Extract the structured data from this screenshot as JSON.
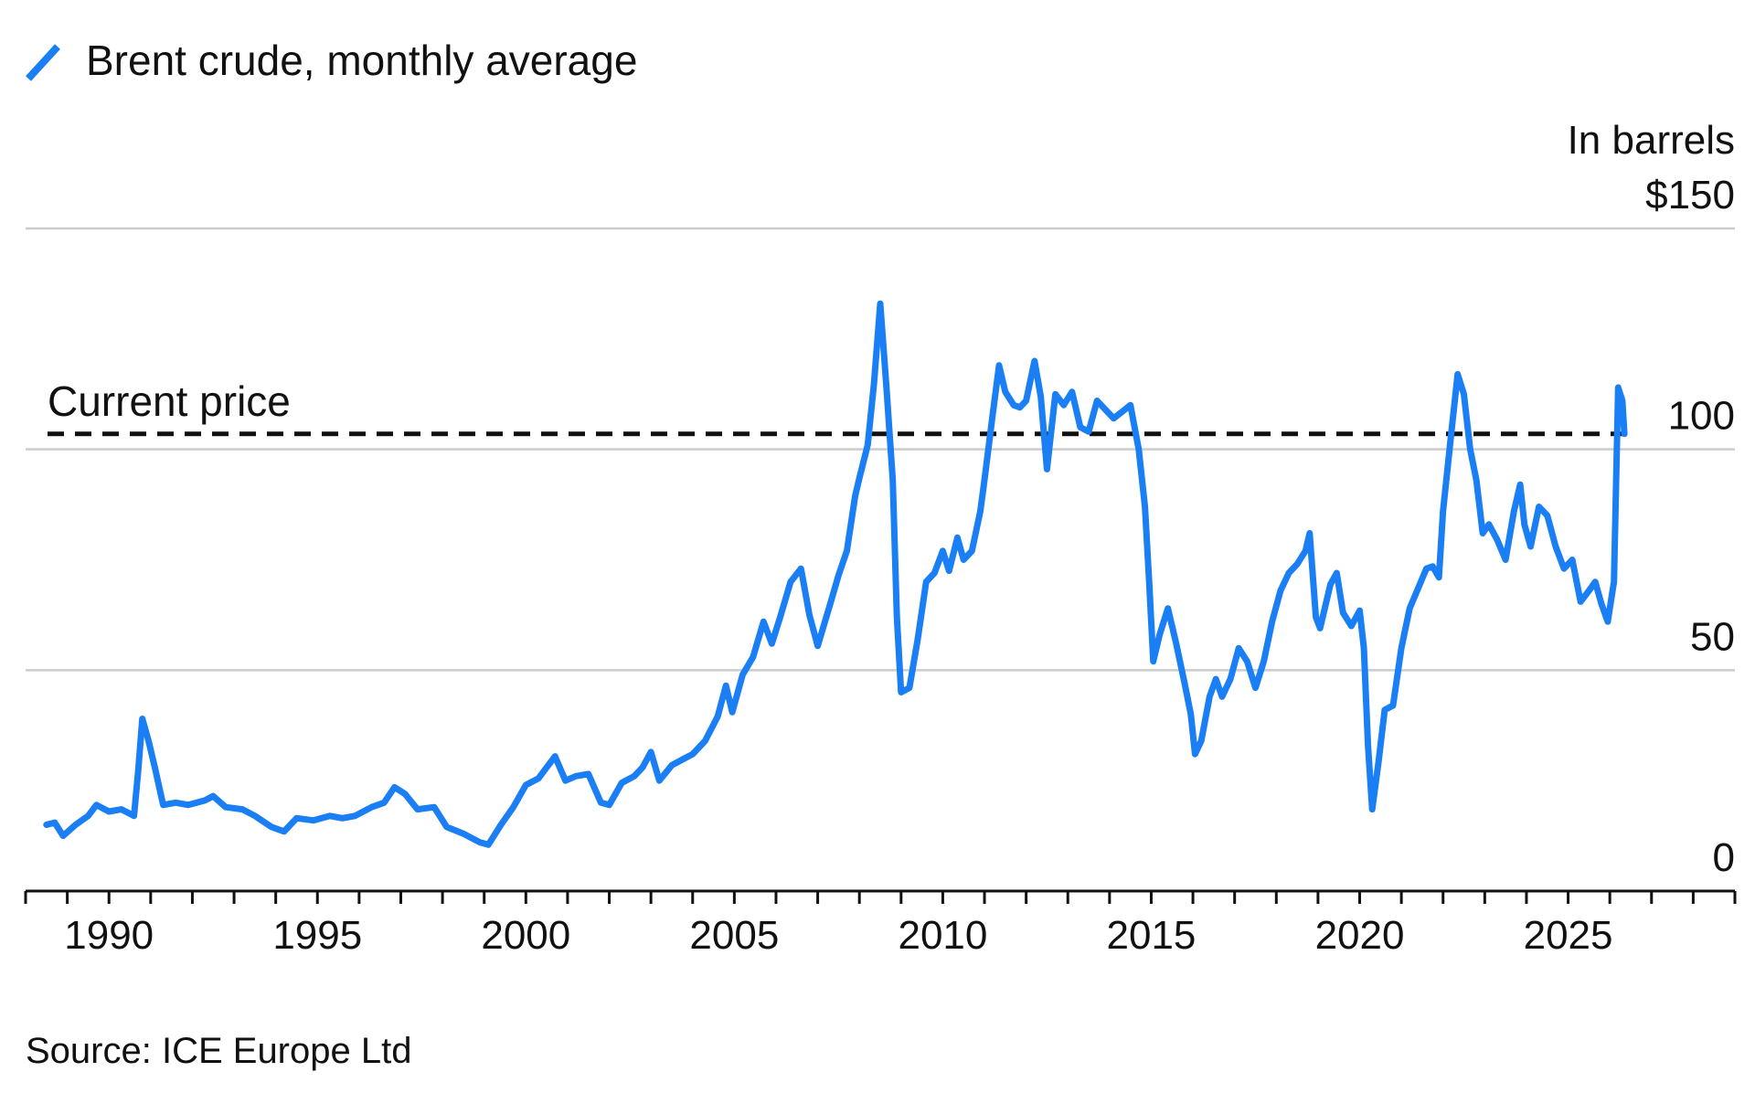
{
  "legend": {
    "label": "Brent crude, monthly average",
    "color": "#1a7ef5",
    "icon": "slash-line-icon"
  },
  "chart_data": {
    "type": "line",
    "unit_label": "In barrels",
    "source": "Source: ICE Europe Ltd",
    "ylim": [
      0,
      150
    ],
    "y_ticks": [
      {
        "value": 150,
        "label": "$150"
      },
      {
        "value": 100,
        "label": "100"
      },
      {
        "value": 50,
        "label": "50"
      },
      {
        "value": 0,
        "label": "0"
      }
    ],
    "xlim": [
      1988,
      2029
    ],
    "x_tick_labels": [
      "1990",
      "1995",
      "2000",
      "2005",
      "2010",
      "2015",
      "2020",
      "2025"
    ],
    "grid": true,
    "legend_position": "top-left",
    "reference_line": {
      "label": "Current price",
      "value": 103.5,
      "style": "dashed",
      "color": "#111111"
    },
    "series": [
      {
        "name": "Brent crude, monthly average",
        "color": "#1a7ef5",
        "points": [
          [
            1988.5,
            15
          ],
          [
            1988.7,
            15.5
          ],
          [
            1988.9,
            12.5
          ],
          [
            1989.2,
            15
          ],
          [
            1989.5,
            17
          ],
          [
            1989.7,
            19.5
          ],
          [
            1990.0,
            18
          ],
          [
            1990.3,
            18.5
          ],
          [
            1990.6,
            17
          ],
          [
            1990.7,
            27
          ],
          [
            1990.8,
            39
          ],
          [
            1990.95,
            34
          ],
          [
            1991.1,
            28
          ],
          [
            1991.3,
            19.5
          ],
          [
            1991.6,
            20
          ],
          [
            1991.9,
            19.5
          ],
          [
            1992.3,
            20.5
          ],
          [
            1992.5,
            21.5
          ],
          [
            1992.8,
            19
          ],
          [
            1993.2,
            18.5
          ],
          [
            1993.5,
            17
          ],
          [
            1993.9,
            14.5
          ],
          [
            1994.2,
            13.5
          ],
          [
            1994.5,
            16.5
          ],
          [
            1994.9,
            16
          ],
          [
            1995.3,
            17
          ],
          [
            1995.6,
            16.5
          ],
          [
            1995.9,
            17
          ],
          [
            1996.3,
            19
          ],
          [
            1996.6,
            20
          ],
          [
            1996.85,
            23.5
          ],
          [
            1997.1,
            22
          ],
          [
            1997.4,
            18.5
          ],
          [
            1997.8,
            19
          ],
          [
            1998.1,
            14.5
          ],
          [
            1998.5,
            13
          ],
          [
            1998.9,
            11
          ],
          [
            1999.1,
            10.5
          ],
          [
            1999.4,
            15
          ],
          [
            1999.7,
            19
          ],
          [
            2000.0,
            24
          ],
          [
            2000.3,
            25.5
          ],
          [
            2000.5,
            28
          ],
          [
            2000.7,
            30.5
          ],
          [
            2000.95,
            25
          ],
          [
            2001.2,
            26
          ],
          [
            2001.5,
            26.5
          ],
          [
            2001.8,
            20
          ],
          [
            2002.0,
            19.5
          ],
          [
            2002.3,
            24.5
          ],
          [
            2002.6,
            26
          ],
          [
            2002.8,
            28
          ],
          [
            2003.0,
            31.5
          ],
          [
            2003.2,
            25
          ],
          [
            2003.5,
            28.5
          ],
          [
            2003.8,
            30
          ],
          [
            2004.0,
            31
          ],
          [
            2004.3,
            34
          ],
          [
            2004.6,
            39.5
          ],
          [
            2004.8,
            46.5
          ],
          [
            2004.95,
            40.5
          ],
          [
            2005.2,
            49
          ],
          [
            2005.45,
            53
          ],
          [
            2005.7,
            61
          ],
          [
            2005.9,
            56
          ],
          [
            2006.1,
            62
          ],
          [
            2006.35,
            70
          ],
          [
            2006.6,
            73
          ],
          [
            2006.8,
            62.5
          ],
          [
            2007.0,
            55.5
          ],
          [
            2007.3,
            65
          ],
          [
            2007.5,
            71.5
          ],
          [
            2007.7,
            77
          ],
          [
            2007.9,
            89.5
          ],
          [
            2008.0,
            93.5
          ],
          [
            2008.2,
            101
          ],
          [
            2008.35,
            115
          ],
          [
            2008.5,
            133
          ],
          [
            2008.65,
            114
          ],
          [
            2008.8,
            93
          ],
          [
            2008.9,
            62
          ],
          [
            2009.0,
            45
          ],
          [
            2009.2,
            46
          ],
          [
            2009.4,
            57
          ],
          [
            2009.6,
            70
          ],
          [
            2009.8,
            72
          ],
          [
            2010.0,
            77
          ],
          [
            2010.15,
            72.5
          ],
          [
            2010.35,
            80
          ],
          [
            2010.5,
            75
          ],
          [
            2010.7,
            77
          ],
          [
            2010.9,
            86
          ],
          [
            2011.0,
            93
          ],
          [
            2011.2,
            108
          ],
          [
            2011.35,
            119
          ],
          [
            2011.5,
            113
          ],
          [
            2011.7,
            110
          ],
          [
            2011.85,
            109.5
          ],
          [
            2012.0,
            111
          ],
          [
            2012.2,
            120
          ],
          [
            2012.35,
            112
          ],
          [
            2012.5,
            95.5
          ],
          [
            2012.7,
            112.5
          ],
          [
            2012.9,
            110
          ],
          [
            2013.1,
            113
          ],
          [
            2013.3,
            105
          ],
          [
            2013.5,
            104
          ],
          [
            2013.7,
            111
          ],
          [
            2013.9,
            109
          ],
          [
            2014.1,
            107
          ],
          [
            2014.3,
            108.5
          ],
          [
            2014.5,
            110
          ],
          [
            2014.7,
            100
          ],
          [
            2014.85,
            87
          ],
          [
            2014.95,
            70
          ],
          [
            2015.05,
            52
          ],
          [
            2015.2,
            58
          ],
          [
            2015.4,
            64
          ],
          [
            2015.6,
            56
          ],
          [
            2015.8,
            47
          ],
          [
            2015.95,
            40
          ],
          [
            2016.05,
            31
          ],
          [
            2016.2,
            34
          ],
          [
            2016.4,
            44
          ],
          [
            2016.55,
            48
          ],
          [
            2016.7,
            44
          ],
          [
            2016.9,
            48
          ],
          [
            2017.1,
            55
          ],
          [
            2017.3,
            52
          ],
          [
            2017.5,
            46
          ],
          [
            2017.7,
            52
          ],
          [
            2017.9,
            61
          ],
          [
            2018.1,
            68
          ],
          [
            2018.3,
            72
          ],
          [
            2018.5,
            74
          ],
          [
            2018.7,
            77
          ],
          [
            2018.8,
            81
          ],
          [
            2018.95,
            62
          ],
          [
            2019.05,
            59.5
          ],
          [
            2019.3,
            69.5
          ],
          [
            2019.45,
            72
          ],
          [
            2019.6,
            63
          ],
          [
            2019.8,
            60
          ],
          [
            2020.0,
            63.5
          ],
          [
            2020.1,
            55
          ],
          [
            2020.2,
            33
          ],
          [
            2020.3,
            18.5
          ],
          [
            2020.45,
            29
          ],
          [
            2020.6,
            41
          ],
          [
            2020.8,
            42
          ],
          [
            2021.0,
            55
          ],
          [
            2021.2,
            64
          ],
          [
            2021.4,
            68.5
          ],
          [
            2021.6,
            73
          ],
          [
            2021.75,
            73.5
          ],
          [
            2021.9,
            71
          ],
          [
            2022.0,
            86
          ],
          [
            2022.2,
            104
          ],
          [
            2022.35,
            117
          ],
          [
            2022.5,
            112.5
          ],
          [
            2022.65,
            100
          ],
          [
            2022.8,
            93
          ],
          [
            2022.95,
            81
          ],
          [
            2023.1,
            83
          ],
          [
            2023.3,
            79.5
          ],
          [
            2023.5,
            75
          ],
          [
            2023.7,
            86
          ],
          [
            2023.85,
            92
          ],
          [
            2023.95,
            83
          ],
          [
            2024.1,
            78
          ],
          [
            2024.3,
            87
          ],
          [
            2024.5,
            85
          ],
          [
            2024.7,
            78
          ],
          [
            2024.9,
            73
          ],
          [
            2025.1,
            75
          ],
          [
            2025.3,
            65.5
          ],
          [
            2025.5,
            68
          ],
          [
            2025.65,
            70
          ],
          [
            2025.8,
            65
          ],
          [
            2025.95,
            61
          ],
          [
            2026.1,
            70
          ],
          [
            2026.2,
            114
          ],
          [
            2026.3,
            111
          ],
          [
            2026.35,
            103.5
          ]
        ]
      }
    ]
  }
}
